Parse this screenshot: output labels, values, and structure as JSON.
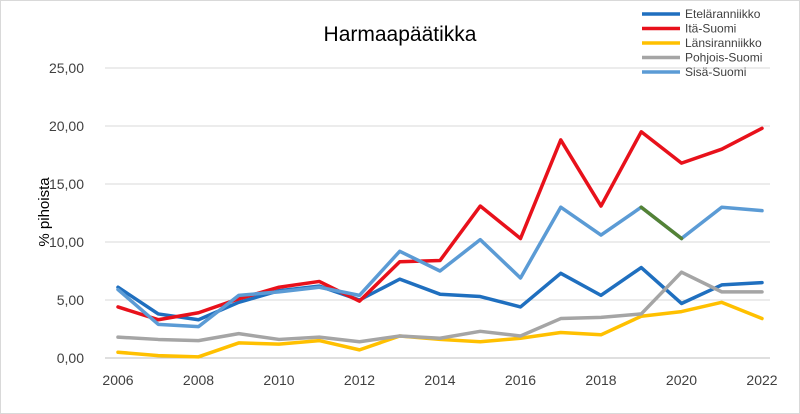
{
  "chart_data": {
    "type": "line",
    "title": "Harmaapäätikka",
    "xlabel": "",
    "ylabel": "% pihoista",
    "x": [
      2006,
      2007,
      2008,
      2009,
      2010,
      2011,
      2012,
      2013,
      2014,
      2015,
      2016,
      2017,
      2018,
      2019,
      2020,
      2021,
      2022
    ],
    "x_ticks": [
      "2006",
      "2008",
      "2010",
      "2012",
      "2014",
      "2016",
      "2018",
      "2020",
      "2022"
    ],
    "y_ticks": [
      "0,00",
      "5,00",
      "10,00",
      "15,00",
      "20,00",
      "25,00"
    ],
    "ylim": [
      0,
      25
    ],
    "xlim": [
      2006,
      2022
    ],
    "grid": "horizontal",
    "legend_position": "top-right",
    "series": [
      {
        "name": "Eteläranniikko",
        "color": "#1f6fbf",
        "values": [
          6.1,
          3.8,
          3.3,
          4.8,
          5.8,
          6.2,
          5.0,
          6.8,
          5.5,
          5.3,
          4.4,
          7.3,
          5.4,
          7.8,
          4.7,
          6.3,
          6.5
        ]
      },
      {
        "name": "Itä-Suomi",
        "color": "#e8111b",
        "values": [
          4.4,
          3.3,
          3.9,
          5.1,
          6.1,
          6.6,
          4.9,
          8.3,
          8.4,
          13.1,
          10.3,
          18.8,
          13.1,
          19.5,
          16.8,
          18.0,
          19.8
        ]
      },
      {
        "name": "Länsiranniikko",
        "color": "#ffc000",
        "values": [
          0.5,
          0.2,
          0.1,
          1.3,
          1.2,
          1.5,
          0.7,
          1.9,
          1.6,
          1.4,
          1.7,
          2.2,
          2.0,
          3.6,
          4.0,
          4.8,
          3.4
        ]
      },
      {
        "name": "Pohjois-Suomi",
        "color": "#a5a5a5",
        "values": [
          1.8,
          1.6,
          1.5,
          2.1,
          1.6,
          1.8,
          1.4,
          1.9,
          1.7,
          2.3,
          1.9,
          3.4,
          3.5,
          3.8,
          7.4,
          5.7,
          5.7
        ]
      },
      {
        "name": "Sisä-Suomi",
        "color": "#5b9bd5",
        "values": [
          5.9,
          2.9,
          2.7,
          5.4,
          5.7,
          6.1,
          5.4,
          9.2,
          7.5,
          10.2,
          6.9,
          13.0,
          10.6,
          13.0,
          10.3,
          13.0,
          12.7
        ],
        "segment_colors": [
          {
            "from": 2019,
            "to": 2020,
            "color": "#548235"
          }
        ]
      }
    ]
  }
}
